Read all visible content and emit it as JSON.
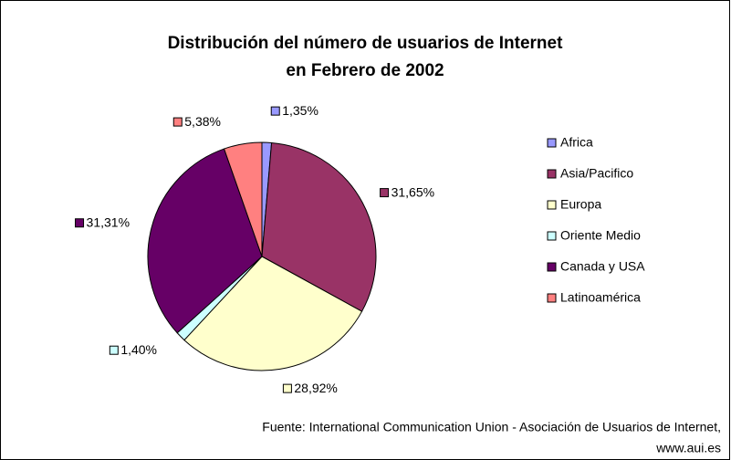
{
  "chart_data": {
    "type": "pie",
    "title": [
      "Distribución del número de usuarios de Internet",
      "en Febrero de 2002"
    ],
    "categories": [
      "Africa",
      "Asia/Pacifico",
      "Europa",
      "Oriente Medio",
      "Canada y USA",
      "Latinoamérica"
    ],
    "values": [
      1.35,
      31.65,
      28.92,
      1.4,
      31.31,
      5.38
    ],
    "value_labels": [
      "1,35%",
      "31,65%",
      "28,92%",
      "1,40%",
      "31,31%",
      "5,38%"
    ],
    "colors": [
      "#9999ff",
      "#993366",
      "#ffffcc",
      "#ccffff",
      "#660066",
      "#ff8080"
    ],
    "legend": "right",
    "source": [
      "Fuente: International Communication Union -  Asociación de Usuarios de Internet,",
      "www.aui.es"
    ]
  }
}
